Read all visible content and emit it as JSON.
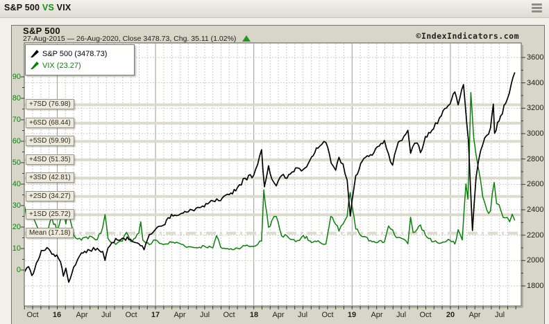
{
  "title_bar": {
    "sp500": "S&P 500",
    "vs": "VS",
    "vix": "VIX",
    "menu_icon": "hamburger-menu-icon"
  },
  "header": {
    "symbol": "S&P 500",
    "range_line": "27-Aug-2015 — 26-Aug-2020, Close 3478.73, Chg. 35.11 (1.02%)",
    "change_direction": "up",
    "copyright": "©IndexIndicators.com"
  },
  "legend": [
    {
      "label": "S&P 500 (3478.73)",
      "color": "#000000"
    },
    {
      "label": "VIX (23.27)",
      "color": "#0a800a"
    }
  ],
  "colors": {
    "spx_line": "#000000",
    "vix_line": "#0a800a",
    "left_axis_text": "#0a800a",
    "band_bar": "#dcdbcc",
    "grid_dashed": "#c9c9c6",
    "grid_year": "#9b9b92",
    "plot_border": "#6e6d64"
  },
  "chart_data": {
    "type": "line",
    "title": "S&P 500 VS VIX",
    "period": {
      "start": "27-Aug-2015",
      "end": "26-Aug-2020"
    },
    "x_unit": "months_from_27-Aug-2015",
    "x_range": [
      0,
      60
    ],
    "left_axis": {
      "name": "VIX",
      "ticks": [
        0,
        10,
        20,
        30,
        40,
        50,
        60,
        70,
        80,
        90
      ],
      "minor_step": 5
    },
    "right_axis": {
      "name": "S&P 500",
      "ticks": [
        1800,
        2000,
        2200,
        2400,
        2600,
        2800,
        3000,
        3200,
        3400,
        3600
      ],
      "minor_step": 100
    },
    "x_ticks": [
      {
        "label": "Oct",
        "t": 1.15
      },
      {
        "label": "16",
        "t": 4.15,
        "bold": true
      },
      {
        "label": "Apr",
        "t": 7.15
      },
      {
        "label": "Jul",
        "t": 10.15
      },
      {
        "label": "Oct",
        "t": 13.15
      },
      {
        "label": "17",
        "t": 16.15,
        "bold": true
      },
      {
        "label": "Apr",
        "t": 19.15
      },
      {
        "label": "Jul",
        "t": 22.15
      },
      {
        "label": "Oct",
        "t": 25.15
      },
      {
        "label": "18",
        "t": 28.15,
        "bold": true
      },
      {
        "label": "Apr",
        "t": 31.15
      },
      {
        "label": "Jul",
        "t": 34.15
      },
      {
        "label": "Oct",
        "t": 37.15
      },
      {
        "label": "19",
        "t": 40.15,
        "bold": true
      },
      {
        "label": "Apr",
        "t": 43.15
      },
      {
        "label": "Jul",
        "t": 46.15
      },
      {
        "label": "Oct",
        "t": 49.15
      },
      {
        "label": "20",
        "t": 52.15,
        "bold": true
      },
      {
        "label": "Apr",
        "t": 55.15
      },
      {
        "label": "Jul",
        "t": 58.15
      }
    ],
    "bands": [
      {
        "label": "+7SD (76.98)",
        "value": 76.98,
        "style": "solid"
      },
      {
        "label": "+6SD (68.44)",
        "value": 68.44,
        "style": "solid"
      },
      {
        "label": "+5SD (59.90)",
        "value": 59.9,
        "style": "solid"
      },
      {
        "label": "+4SD (51.35)",
        "value": 51.35,
        "style": "solid"
      },
      {
        "label": "+3SD (42.81)",
        "value": 42.81,
        "style": "solid"
      },
      {
        "label": "+2SD (34.27)",
        "value": 34.27,
        "style": "solid"
      },
      {
        "label": "+1SD (25.72)",
        "value": 25.72,
        "style": "solid"
      },
      {
        "label": "Mean (17.18)",
        "value": 17.18,
        "style": "dash-dot"
      }
    ],
    "series": [
      {
        "name": "VIX",
        "axis": "left",
        "color": "#0a800a",
        "last_value": 23.27,
        "points": [
          [
            0,
            26.1
          ],
          [
            0.15,
            30.0
          ],
          [
            0.35,
            26.0
          ],
          [
            0.65,
            28.0
          ],
          [
            1.05,
            27.0
          ],
          [
            1.45,
            22.5
          ],
          [
            2.2,
            15.0
          ],
          [
            2.9,
            16.5
          ],
          [
            3.5,
            24.4
          ],
          [
            4.1,
            18.2
          ],
          [
            4.55,
            23.5
          ],
          [
            4.9,
            27.6
          ],
          [
            5.2,
            21.5
          ],
          [
            5.55,
            28.1
          ],
          [
            6.15,
            16.5
          ],
          [
            7.1,
            13.9
          ],
          [
            8.1,
            15.7
          ],
          [
            9.05,
            14.2
          ],
          [
            9.7,
            19.9
          ],
          [
            9.98,
            25.8
          ],
          [
            10.35,
            14.7
          ],
          [
            11.3,
            11.9
          ],
          [
            12.1,
            13.4
          ],
          [
            12.6,
            17.5
          ],
          [
            13.1,
            13.3
          ],
          [
            14.1,
            17.1
          ],
          [
            14.35,
            22.5
          ],
          [
            14.6,
            13.9
          ],
          [
            15.4,
            11.8
          ],
          [
            16.15,
            14.0
          ],
          [
            17.1,
            11.8
          ],
          [
            18.1,
            12.9
          ],
          [
            19.1,
            12.4
          ],
          [
            20.15,
            10.8
          ],
          [
            21.1,
            10.4
          ],
          [
            22.1,
            11.2
          ],
          [
            23.15,
            10.3
          ],
          [
            23.6,
            16.0
          ],
          [
            24.1,
            10.6
          ],
          [
            25.15,
            9.6
          ],
          [
            26.15,
            10.2
          ],
          [
            27.1,
            11.3
          ],
          [
            28.15,
            11.0
          ],
          [
            29.1,
            13.5
          ],
          [
            29.37,
            37.3
          ],
          [
            29.95,
            19.9
          ],
          [
            30.35,
            23.0
          ],
          [
            30.9,
            24.9
          ],
          [
            31.55,
            15.9
          ],
          [
            32.2,
            15.9
          ],
          [
            33.25,
            13.2
          ],
          [
            34.2,
            16.1
          ],
          [
            35.2,
            12.8
          ],
          [
            36.2,
            12.9
          ],
          [
            36.95,
            12.1
          ],
          [
            37.55,
            25.0
          ],
          [
            38.15,
            21.2
          ],
          [
            38.55,
            18.1
          ],
          [
            39.05,
            21.5
          ],
          [
            39.55,
            25.0
          ],
          [
            39.92,
            36.1
          ],
          [
            40.6,
            19.1
          ],
          [
            41.4,
            15.5
          ],
          [
            42.4,
            13.7
          ],
          [
            44.1,
            13.1
          ],
          [
            44.6,
            20.5
          ],
          [
            45.1,
            18.7
          ],
          [
            45.6,
            15.0
          ],
          [
            46.0,
            15.1
          ],
          [
            46.97,
            12.2
          ],
          [
            47.3,
            24.6
          ],
          [
            47.6,
            17.5
          ],
          [
            48.1,
            19.0
          ],
          [
            48.5,
            21.0
          ],
          [
            49.1,
            16.2
          ],
          [
            50.1,
            13.2
          ],
          [
            51.05,
            12.6
          ],
          [
            52.1,
            13.8
          ],
          [
            52.7,
            12.1
          ],
          [
            53.1,
            18.8
          ],
          [
            53.6,
            14.0
          ],
          [
            54.05,
            40.1
          ],
          [
            54.3,
            33.0
          ],
          [
            54.65,
            82.7
          ],
          [
            55.0,
            61.7
          ],
          [
            55.3,
            53.5
          ],
          [
            55.6,
            46.8
          ],
          [
            56.1,
            34.2
          ],
          [
            56.6,
            28.0
          ],
          [
            57.05,
            27.5
          ],
          [
            57.5,
            40.8
          ],
          [
            57.8,
            31.0
          ],
          [
            58.1,
            30.4
          ],
          [
            58.6,
            24.5
          ],
          [
            59.1,
            24.5
          ],
          [
            59.4,
            22.5
          ],
          [
            59.7,
            26.0
          ],
          [
            60,
            23.27
          ]
        ]
      },
      {
        "name": "S&P 500",
        "axis": "right",
        "color": "#000000",
        "last_value": 3478.73,
        "points": [
          [
            0,
            1988
          ],
          [
            0.2,
            1914
          ],
          [
            0.65,
            1952
          ],
          [
            1.05,
            1882
          ],
          [
            1.4,
            1932
          ],
          [
            2.2,
            2079
          ],
          [
            2.9,
            2102
          ],
          [
            3.5,
            2050
          ],
          [
            4.1,
            2044
          ],
          [
            4.55,
            1990
          ],
          [
            4.9,
            1877
          ],
          [
            5.2,
            1940
          ],
          [
            5.55,
            1829
          ],
          [
            6.15,
            1948
          ],
          [
            7.1,
            2060
          ],
          [
            8.1,
            2081
          ],
          [
            9.05,
            2096
          ],
          [
            9.7,
            2071
          ],
          [
            9.98,
            2001
          ],
          [
            10.35,
            2099
          ],
          [
            11.3,
            2174
          ],
          [
            12.1,
            2176
          ],
          [
            13.1,
            2168
          ],
          [
            14.1,
            2133
          ],
          [
            14.75,
            2085
          ],
          [
            15.4,
            2205
          ],
          [
            16.15,
            2247
          ],
          [
            17.1,
            2279
          ],
          [
            18.1,
            2364
          ],
          [
            19.1,
            2363
          ],
          [
            20.15,
            2384
          ],
          [
            21.1,
            2412
          ],
          [
            22.1,
            2423
          ],
          [
            23.15,
            2470
          ],
          [
            24.1,
            2472
          ],
          [
            25.15,
            2519
          ],
          [
            26.15,
            2575
          ],
          [
            27.1,
            2648
          ],
          [
            28.15,
            2674
          ],
          [
            29.1,
            2873
          ],
          [
            29.45,
            2581
          ],
          [
            29.95,
            2747
          ],
          [
            30.35,
            2643
          ],
          [
            30.9,
            2588
          ],
          [
            31.55,
            2670
          ],
          [
            32.2,
            2648
          ],
          [
            33.25,
            2730
          ],
          [
            34.2,
            2718
          ],
          [
            35.2,
            2816
          ],
          [
            36.2,
            2902
          ],
          [
            36.95,
            2931
          ],
          [
            37.6,
            2767
          ],
          [
            38.15,
            2712
          ],
          [
            38.55,
            2813
          ],
          [
            39.05,
            2760
          ],
          [
            39.55,
            2633
          ],
          [
            39.93,
            2351
          ],
          [
            40.6,
            2670
          ],
          [
            41.4,
            2784
          ],
          [
            42.4,
            2834
          ],
          [
            44.1,
            2946
          ],
          [
            44.6,
            2840
          ],
          [
            45.1,
            2752
          ],
          [
            45.6,
            2890
          ],
          [
            46.0,
            2942
          ],
          [
            46.97,
            3026
          ],
          [
            47.3,
            2845
          ],
          [
            47.8,
            2925
          ],
          [
            48.1,
            2926
          ],
          [
            48.5,
            2850
          ],
          [
            49.1,
            2977
          ],
          [
            50.1,
            3038
          ],
          [
            51.05,
            3141
          ],
          [
            52.1,
            3231
          ],
          [
            52.7,
            3329
          ],
          [
            53.1,
            3226
          ],
          [
            53.75,
            3386
          ],
          [
            54.35,
            2954
          ],
          [
            54.85,
            2237
          ],
          [
            55.3,
            2659
          ],
          [
            55.6,
            2790
          ],
          [
            56.1,
            2912
          ],
          [
            57.05,
            3044
          ],
          [
            57.4,
            3232
          ],
          [
            57.55,
            3002
          ],
          [
            58.1,
            3100
          ],
          [
            59.1,
            3271
          ],
          [
            59.6,
            3395
          ],
          [
            59.8,
            3443
          ],
          [
            60,
            3478.73
          ]
        ]
      }
    ]
  }
}
